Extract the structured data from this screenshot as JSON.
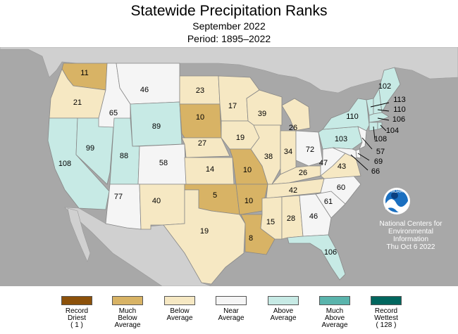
{
  "title": "Statewide Precipitation Ranks",
  "subtitle": "September 2022",
  "period": "Period: 1895–2022",
  "logo_text": "NOAA",
  "credit": {
    "line1": "National Centers for",
    "line2": "Environmental",
    "line3": "Information",
    "date": "Thu Oct  6 2022"
  },
  "colors": {
    "record_driest": "#8c510a",
    "much_below": "#d8b365",
    "below": "#f6e8c3",
    "near": "#f5f5f5",
    "above": "#c7eae5",
    "much_above": "#5ab4ac",
    "record_wettest": "#01665e",
    "ocean": "#a8a8a8",
    "foreign_land": "#d0d0d0"
  },
  "legend": [
    {
      "line1": "Record",
      "line2": "Driest",
      "line3": "( 1 )",
      "color": "#8c510a"
    },
    {
      "line1": "Much",
      "line2": "Below",
      "line3": "Average",
      "color": "#d8b365"
    },
    {
      "line1": "Below",
      "line2": "Average",
      "line3": "",
      "color": "#f6e8c3"
    },
    {
      "line1": "Near",
      "line2": "Average",
      "line3": "",
      "color": "#f5f5f5"
    },
    {
      "line1": "Above",
      "line2": "Average",
      "line3": "",
      "color": "#c7eae5"
    },
    {
      "line1": "Much",
      "line2": "Above",
      "line3": "Average",
      "color": "#5ab4ac"
    },
    {
      "line1": "Record",
      "line2": "Wettest",
      "line3": "( 128 )",
      "color": "#01665e"
    }
  ],
  "states": {
    "WA": "11",
    "OR": "21",
    "CA": "108",
    "NV": "99",
    "ID": "65",
    "MT": "46",
    "WY": "89",
    "UT": "88",
    "CO": "58",
    "AZ": "77",
    "NM": "40",
    "ND": "23",
    "SD": "10",
    "NE": "27",
    "KS": "14",
    "OK": "5",
    "TX": "19",
    "MN": "17",
    "IA": "19",
    "MO": "10",
    "AR": "10",
    "LA": "8",
    "WI": "39",
    "IL": "38",
    "IN": "34",
    "MI": "26",
    "OH": "72",
    "KY": "26",
    "TN": "42",
    "MS": "15",
    "AL": "28",
    "GA": "46",
    "FL": "106",
    "SC": "61",
    "NC": "60",
    "VA": "43",
    "WV": "47",
    "PA": "103",
    "NY": "110",
    "ME": "102",
    "VT": "113",
    "NH": "110",
    "MA": "106",
    "RI": "104",
    "CT": "108",
    "NJ": "57",
    "DE": "69",
    "MD": "66"
  }
}
